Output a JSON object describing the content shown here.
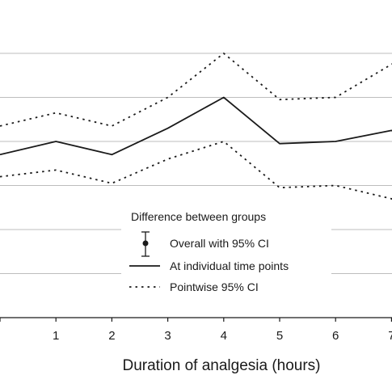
{
  "chart_data": {
    "type": "line",
    "xlabel": "Duration of analgesia (hours)",
    "ylabel": "",
    "x_ticks": [
      "1",
      "2",
      "3",
      "4",
      "5",
      "6",
      "7"
    ],
    "xlim": [
      0,
      7.65
    ],
    "ylim": [
      -4.4,
      2.3
    ],
    "grid": {
      "horizontal": true,
      "vertical": false
    },
    "series": [
      {
        "name": "At individual time points",
        "style": "solid",
        "x": [
          0,
          1,
          2,
          3,
          4,
          5,
          6,
          7,
          7.65
        ],
        "y": [
          -0.3,
          0.0,
          -0.3,
          0.3,
          1.0,
          -0.05,
          0.0,
          0.25,
          -0.2
        ]
      },
      {
        "name": "Pointwise 95% CI",
        "style": "dotted",
        "x": [
          0,
          1,
          2,
          3,
          4,
          5,
          6,
          7,
          7.65
        ],
        "y": [
          0.35,
          0.65,
          0.35,
          1.0,
          2.0,
          0.95,
          1.0,
          1.75,
          2.2
        ]
      },
      {
        "name": "Pointwise 95% CI lower",
        "style": "dotted",
        "x": [
          0,
          1,
          2,
          3,
          4,
          5,
          6,
          7,
          7.65
        ],
        "y": [
          -0.8,
          -0.65,
          -0.95,
          -0.4,
          0.0,
          -1.05,
          -1.0,
          -1.3,
          -2.4
        ]
      }
    ],
    "legend": {
      "title": "Difference between groups",
      "placement": "bottom-right",
      "items": [
        {
          "label": "Overall with 95% CI",
          "symbol": "point-errorbar"
        },
        {
          "label": "At individual time points",
          "symbol": "solid-line"
        },
        {
          "label": "Pointwise 95% CI",
          "symbol": "dotted-line"
        }
      ]
    },
    "colors": {
      "line": "#1a1a1a",
      "grid": "#bdbdbd",
      "background": "#ffffff"
    }
  }
}
